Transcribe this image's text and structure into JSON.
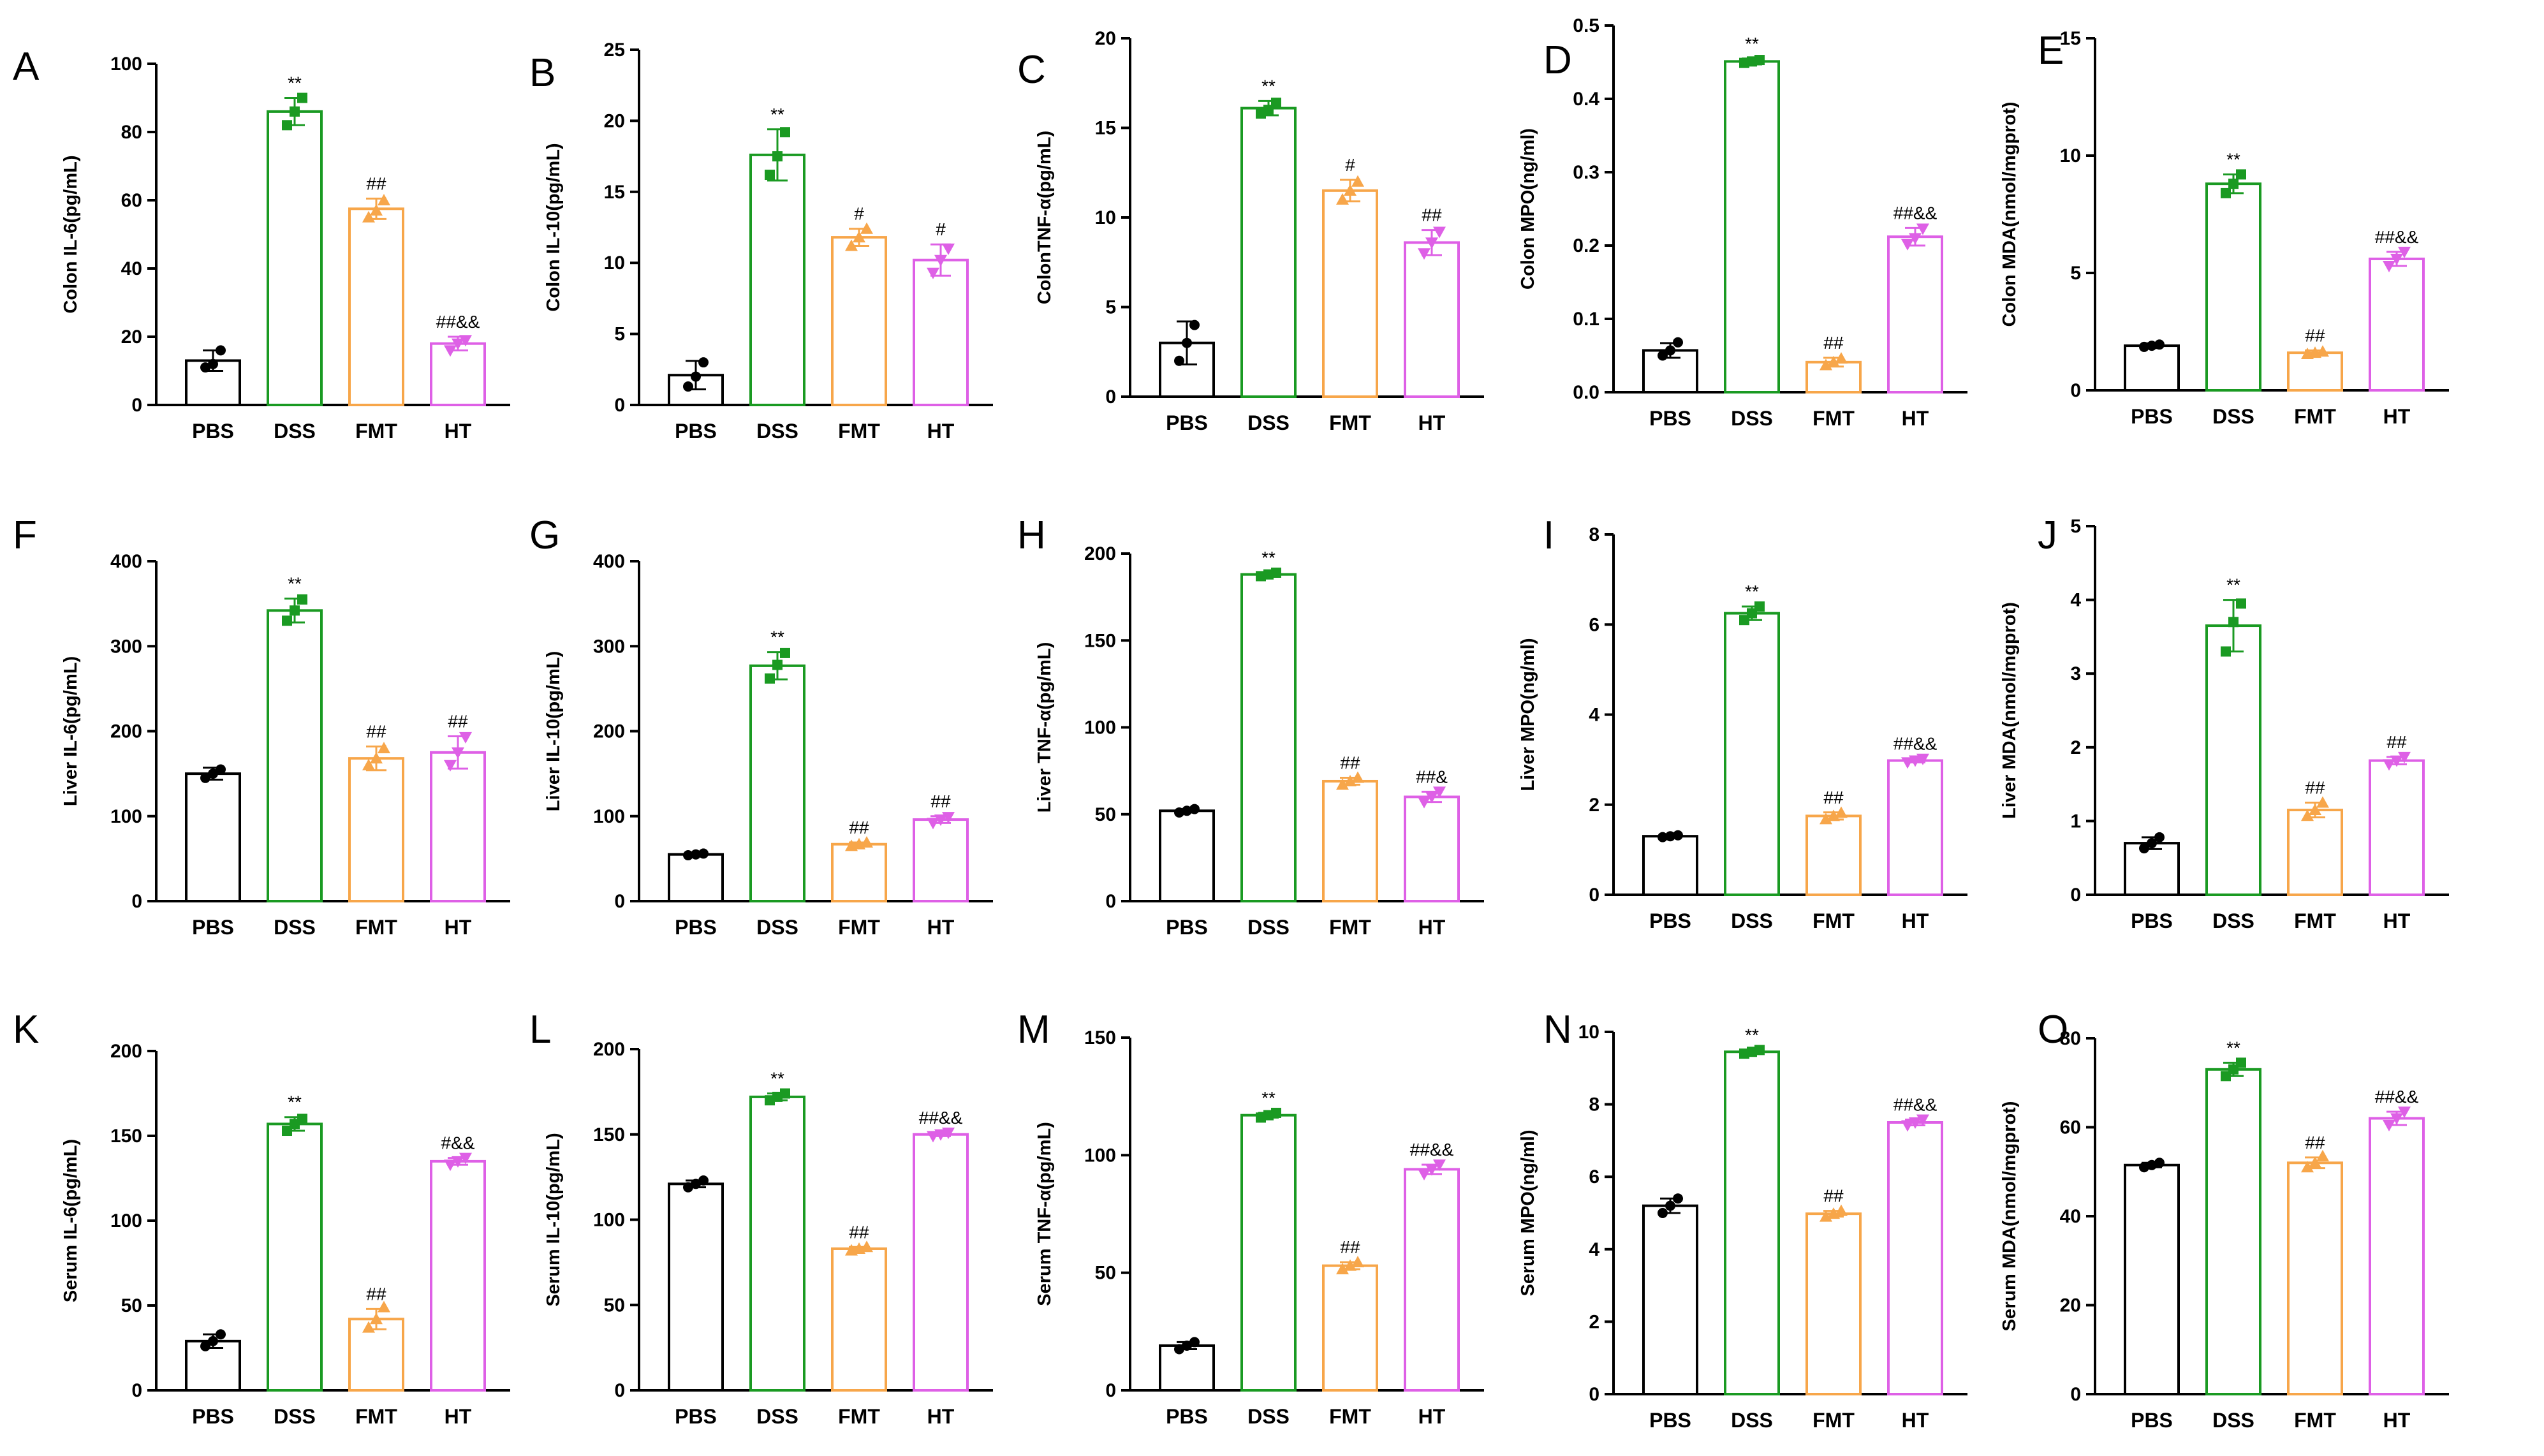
{
  "figure": {
    "categories": [
      "PBS",
      "DSS",
      "FMT",
      "HT"
    ],
    "colors": {
      "PBS": "#000000",
      "DSS": "#1a9a22",
      "FMT": "#f7a64a",
      "HT": "#de60e6"
    }
  },
  "chart_data": [
    {
      "letter": "A",
      "type": "bar",
      "ylabel": "Colon IL-6(pg/mL)",
      "ylim": [
        0,
        100
      ],
      "ticks": [
        "0",
        "20",
        "40",
        "60",
        "80",
        "100"
      ],
      "categories": [
        "PBS",
        "DSS",
        "FMT",
        "HT"
      ],
      "values": [
        13,
        86,
        57.5,
        18
      ],
      "sd": [
        3,
        4,
        3,
        2
      ],
      "points": [
        [
          11,
          12,
          16
        ],
        [
          82,
          86,
          90
        ],
        [
          55,
          57,
          60
        ],
        [
          16,
          18,
          19
        ]
      ],
      "sig": [
        "",
        "**",
        "##",
        "##&&"
      ]
    },
    {
      "letter": "B",
      "type": "bar",
      "ylabel": "Colon IL-10(pg/mL)",
      "ylim": [
        0,
        25
      ],
      "ticks": [
        "0",
        "5",
        "10",
        "15",
        "20",
        "25"
      ],
      "categories": [
        "PBS",
        "DSS",
        "FMT",
        "HT"
      ],
      "values": [
        2.1,
        17.6,
        11.8,
        10.2
      ],
      "sd": [
        1,
        1.8,
        0.6,
        1.1
      ],
      "points": [
        [
          1.3,
          2.0,
          3.0
        ],
        [
          16.2,
          17.5,
          19.2
        ],
        [
          11.2,
          11.8,
          12.4
        ],
        [
          9.3,
          10.2,
          11.0
        ]
      ],
      "sig": [
        "",
        "**",
        "#",
        "#"
      ]
    },
    {
      "letter": "C",
      "type": "bar",
      "ylabel": "ColonTNF-α(pg/mL)",
      "ylim": [
        0,
        20
      ],
      "ticks": [
        "0",
        "5",
        "10",
        "15",
        "20"
      ],
      "categories": [
        "PBS",
        "DSS",
        "FMT",
        "HT"
      ],
      "values": [
        3.0,
        16.1,
        11.5,
        8.6
      ],
      "sd": [
        1.2,
        0.4,
        0.6,
        0.7
      ],
      "points": [
        [
          2.0,
          3.0,
          4.0
        ],
        [
          15.8,
          16.0,
          16.4
        ],
        [
          11.0,
          11.5,
          12.0
        ],
        [
          8.0,
          8.6,
          9.2
        ]
      ],
      "sig": [
        "",
        "**",
        "#",
        "##"
      ]
    },
    {
      "letter": "D",
      "type": "bar",
      "ylabel": "Colon MPO(ng/ml)",
      "ylim": [
        0,
        0.5
      ],
      "ticks": [
        "0.0",
        "0.1",
        "0.2",
        "0.3",
        "0.4",
        "0.5"
      ],
      "categories": [
        "PBS",
        "DSS",
        "FMT",
        "HT"
      ],
      "values": [
        0.057,
        0.451,
        0.041,
        0.212
      ],
      "sd": [
        0.01,
        0.004,
        0.006,
        0.012
      ],
      "points": [
        [
          0.05,
          0.057,
          0.068
        ],
        [
          0.449,
          0.451,
          0.453
        ],
        [
          0.037,
          0.041,
          0.046
        ],
        [
          0.202,
          0.21,
          0.223
        ]
      ],
      "sig": [
        "",
        "**",
        "##",
        "##&&"
      ]
    },
    {
      "letter": "E",
      "type": "bar",
      "ylabel": "Colon MDA(nmol/mgprot)",
      "ylim": [
        0,
        15
      ],
      "ticks": [
        "0",
        "5",
        "10",
        "15"
      ],
      "categories": [
        "PBS",
        "DSS",
        "FMT",
        "HT"
      ],
      "values": [
        1.9,
        8.8,
        1.6,
        5.6
      ],
      "sd": [
        0.1,
        0.4,
        0.1,
        0.3
      ],
      "points": [
        [
          1.85,
          1.9,
          1.95
        ],
        [
          8.4,
          8.8,
          9.2
        ],
        [
          1.55,
          1.6,
          1.65
        ],
        [
          5.3,
          5.6,
          5.9
        ]
      ],
      "sig": [
        "",
        "**",
        "##",
        "##&&"
      ]
    },
    {
      "letter": "F",
      "type": "bar",
      "ylabel": "Liver IL-6(pg/mL)",
      "ylim": [
        0,
        400
      ],
      "ticks": [
        "0",
        "100",
        "200",
        "300",
        "400"
      ],
      "categories": [
        "PBS",
        "DSS",
        "FMT",
        "HT"
      ],
      "values": [
        150,
        342,
        168,
        175
      ],
      "sd": [
        7,
        14,
        14,
        19
      ],
      "points": [
        [
          145,
          150,
          155
        ],
        [
          330,
          342,
          355
        ],
        [
          160,
          168,
          180
        ],
        [
          160,
          175,
          193
        ]
      ],
      "sig": [
        "",
        "**",
        "##",
        "##"
      ]
    },
    {
      "letter": "G",
      "type": "bar",
      "ylabel": "Liver IL-10(pg/mL)",
      "ylim": [
        0,
        400
      ],
      "ticks": [
        "0",
        "100",
        "200",
        "300",
        "400"
      ],
      "categories": [
        "PBS",
        "DSS",
        "FMT",
        "HT"
      ],
      "values": [
        55,
        277,
        67,
        96
      ],
      "sd": [
        1,
        16,
        2,
        4
      ],
      "points": [
        [
          54,
          55,
          56
        ],
        [
          262,
          278,
          292
        ],
        [
          65,
          67,
          69
        ],
        [
          92,
          96,
          99
        ]
      ],
      "sig": [
        "",
        "**",
        "##",
        "##"
      ]
    },
    {
      "letter": "H",
      "type": "bar",
      "ylabel": "Liver TNF-α(pg/mL)",
      "ylim": [
        0,
        200
      ],
      "ticks": [
        "0",
        "50",
        "100",
        "150",
        "200"
      ],
      "categories": [
        "PBS",
        "DSS",
        "FMT",
        "HT"
      ],
      "values": [
        52,
        188,
        69,
        60
      ],
      "sd": [
        1,
        1,
        2,
        3
      ],
      "points": [
        [
          51,
          52,
          53
        ],
        [
          187,
          188,
          189
        ],
        [
          67,
          69,
          71
        ],
        [
          57,
          60,
          63
        ]
      ],
      "sig": [
        "",
        "**",
        "##",
        "##&"
      ]
    },
    {
      "letter": "I",
      "type": "bar",
      "ylabel": "Liver MPO(ng/ml)",
      "ylim": [
        0,
        8
      ],
      "ticks": [
        "0",
        "2",
        "4",
        "6",
        "8"
      ],
      "categories": [
        "PBS",
        "DSS",
        "FMT",
        "HT"
      ],
      "values": [
        1.3,
        6.25,
        1.75,
        2.98
      ],
      "sd": [
        0.02,
        0.15,
        0.08,
        0.04
      ],
      "points": [
        [
          1.28,
          1.3,
          1.32
        ],
        [
          6.1,
          6.25,
          6.4
        ],
        [
          1.68,
          1.75,
          1.82
        ],
        [
          2.94,
          2.98,
          3.02
        ]
      ],
      "sig": [
        "",
        "**",
        "##",
        "##&&"
      ]
    },
    {
      "letter": "J",
      "type": "bar",
      "ylabel": "Liver MDA(nmol/mgprot)",
      "ylim": [
        0,
        5
      ],
      "ticks": [
        "0",
        "1",
        "2",
        "3",
        "4",
        "5"
      ],
      "categories": [
        "PBS",
        "DSS",
        "FMT",
        "HT"
      ],
      "values": [
        0.7,
        3.65,
        1.15,
        1.82
      ],
      "sd": [
        0.08,
        0.35,
        0.1,
        0.05
      ],
      "points": [
        [
          0.63,
          0.7,
          0.78
        ],
        [
          3.3,
          3.7,
          3.95
        ],
        [
          1.07,
          1.15,
          1.25
        ],
        [
          1.77,
          1.82,
          1.87
        ]
      ],
      "sig": [
        "",
        "**",
        "##",
        "##"
      ]
    },
    {
      "letter": "K",
      "type": "bar",
      "ylabel": "Serum IL-6(pg/mL)",
      "ylim": [
        0,
        200
      ],
      "ticks": [
        "0",
        "50",
        "100",
        "150",
        "200"
      ],
      "categories": [
        "PBS",
        "DSS",
        "FMT",
        "HT"
      ],
      "values": [
        29,
        157,
        42,
        135
      ],
      "sd": [
        4,
        4,
        6,
        2
      ],
      "points": [
        [
          26,
          29,
          33
        ],
        [
          153,
          157,
          160
        ],
        [
          37,
          42,
          49
        ],
        [
          133,
          135,
          137
        ]
      ],
      "sig": [
        "",
        "**",
        "##",
        "#&&"
      ]
    },
    {
      "letter": "L",
      "type": "bar",
      "ylabel": "Serum IL-10(pg/mL)",
      "ylim": [
        0,
        200
      ],
      "ticks": [
        "0",
        "50",
        "100",
        "150",
        "200"
      ],
      "categories": [
        "PBS",
        "DSS",
        "FMT",
        "HT"
      ],
      "values": [
        121,
        172,
        83,
        150
      ],
      "sd": [
        2,
        2,
        1,
        1
      ],
      "points": [
        [
          119,
          121,
          123
        ],
        [
          170,
          172,
          174
        ],
        [
          82,
          83,
          84
        ],
        [
          149,
          150,
          151
        ]
      ],
      "sig": [
        "",
        "**",
        "##",
        "##&&"
      ]
    },
    {
      "letter": "M",
      "type": "bar",
      "ylabel": "Serum TNF-α(pg/mL)",
      "ylim": [
        0,
        150
      ],
      "ticks": [
        "0",
        "50",
        "100",
        "150"
      ],
      "categories": [
        "PBS",
        "DSS",
        "FMT",
        "HT"
      ],
      "values": [
        19,
        117,
        53,
        94
      ],
      "sd": [
        1.5,
        1,
        1.5,
        2
      ],
      "points": [
        [
          17.5,
          19,
          20.5
        ],
        [
          116,
          117,
          118
        ],
        [
          51.5,
          53,
          54.5
        ],
        [
          92,
          94,
          96
        ]
      ],
      "sig": [
        "",
        "**",
        "##",
        "##&&"
      ]
    },
    {
      "letter": "N",
      "type": "bar",
      "ylabel": "Serum MPO(ng/ml)",
      "ylim": [
        0,
        10
      ],
      "ticks": [
        "0",
        "2",
        "4",
        "6",
        "8",
        "10"
      ],
      "categories": [
        "PBS",
        "DSS",
        "FMT",
        "HT"
      ],
      "values": [
        5.2,
        9.45,
        4.98,
        7.5
      ],
      "sd": [
        0.2,
        0.05,
        0.08,
        0.08
      ],
      "points": [
        [
          5.0,
          5.2,
          5.4
        ],
        [
          9.4,
          9.45,
          9.5
        ],
        [
          4.9,
          4.98,
          5.06
        ],
        [
          7.42,
          7.5,
          7.58
        ]
      ],
      "sig": [
        "",
        "**",
        "##",
        "##&&"
      ]
    },
    {
      "letter": "O",
      "type": "bar",
      "ylabel": "Serum MDA(nmol/mgprot)",
      "ylim": [
        0,
        80
      ],
      "ticks": [
        "0",
        "20",
        "40",
        "60",
        "80"
      ],
      "categories": [
        "PBS",
        "DSS",
        "FMT",
        "HT"
      ],
      "values": [
        51.5,
        73,
        52,
        62
      ],
      "sd": [
        0.5,
        1.5,
        1.2,
        1.5
      ],
      "points": [
        [
          51,
          51.5,
          52
        ],
        [
          71.5,
          73,
          74.5
        ],
        [
          51,
          52,
          53.5
        ],
        [
          60.5,
          62,
          63.5
        ]
      ],
      "sig": [
        "",
        "**",
        "##",
        "##&&"
      ]
    }
  ]
}
